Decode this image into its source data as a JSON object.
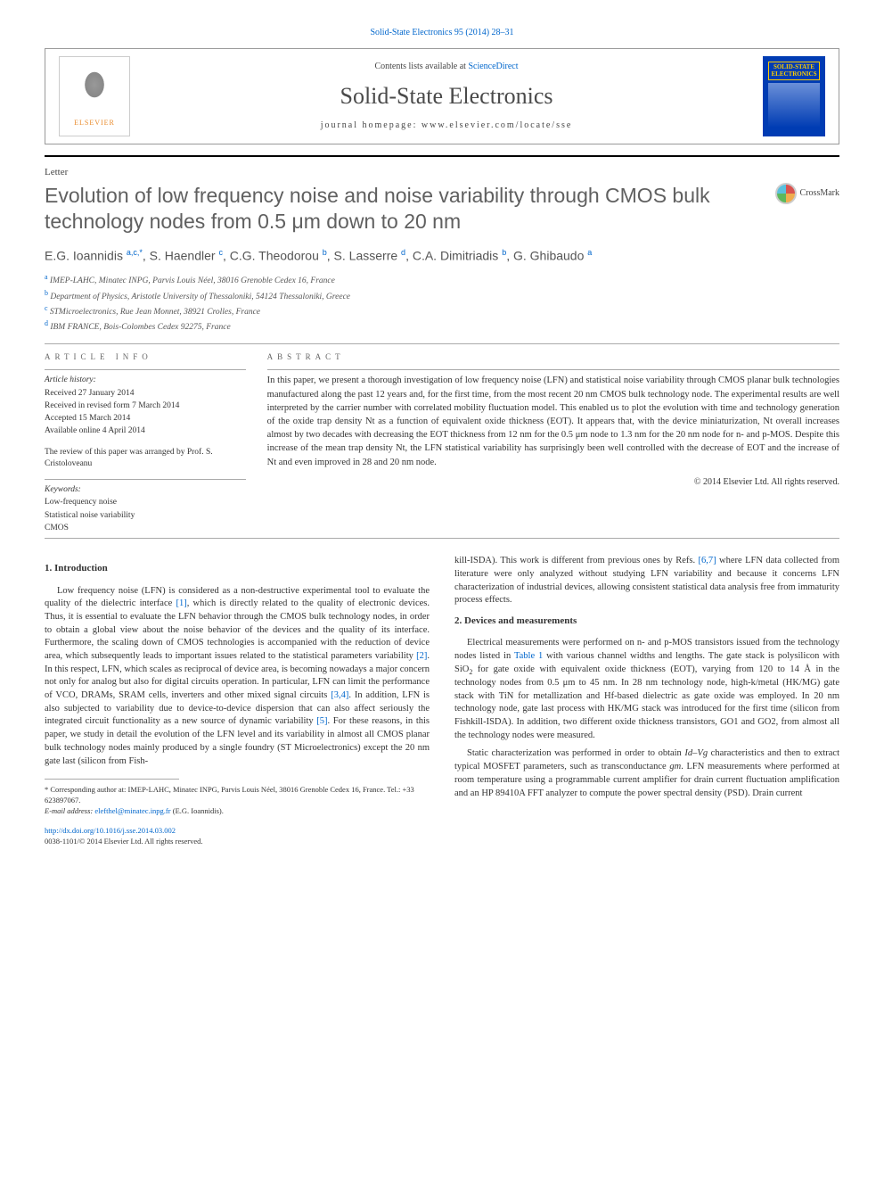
{
  "top_link": "Solid-State Electronics 95 (2014) 28–31",
  "banner": {
    "publisher": "ELSEVIER",
    "contents_prefix": "Contents lists available at ",
    "contents_link": "ScienceDirect",
    "journal_name": "Solid-State Electronics",
    "homepage": "journal homepage: www.elsevier.com/locate/sse",
    "cover_title": "SOLID-STATE ELECTRONICS"
  },
  "letter_label": "Letter",
  "title": "Evolution of low frequency noise and noise variability through CMOS bulk technology nodes from 0.5 μm down to 20 nm",
  "crossmark_label": "CrossMark",
  "authors_html": "E.G. Ioannidis <sup>a,c,*</sup>, S. Haendler <sup>c</sup>, C.G. Theodorou <sup>b</sup>, S. Lasserre <sup>d</sup>, C.A. Dimitriadis <sup>b</sup>, G. Ghibaudo <sup>a</sup>",
  "affiliations": [
    {
      "sup": "a",
      "text": "IMEP-LAHC, Minatec INPG, Parvis Louis Néel, 38016 Grenoble Cedex 16, France"
    },
    {
      "sup": "b",
      "text": "Department of Physics, Aristotle University of Thessaloniki, 54124 Thessaloniki, Greece"
    },
    {
      "sup": "c",
      "text": "STMicroelectronics, Rue Jean Monnet, 38921 Crolles, France"
    },
    {
      "sup": "d",
      "text": "IBM FRANCE, Bois-Colombes Cedex 92275, France"
    }
  ],
  "info_label": "ARTICLE INFO",
  "abstract_label": "ABSTRACT",
  "history": {
    "label": "Article history:",
    "received": "Received 27 January 2014",
    "revised": "Received in revised form 7 March 2014",
    "accepted": "Accepted 15 March 2014",
    "online": "Available online 4 April 2014"
  },
  "review_note": "The review of this paper was arranged by Prof. S. Cristoloveanu",
  "keywords": {
    "label": "Keywords:",
    "items": [
      "Low-frequency noise",
      "Statistical noise variability",
      "CMOS"
    ]
  },
  "abstract": "In this paper, we present a thorough investigation of low frequency noise (LFN) and statistical noise variability through CMOS planar bulk technologies manufactured along the past 12 years and, for the first time, from the most recent 20 nm CMOS bulk technology node. The experimental results are well interpreted by the carrier number with correlated mobility fluctuation model. This enabled us to plot the evolution with time and technology generation of the oxide trap density Nt as a function of equivalent oxide thickness (EOT). It appears that, with the device miniaturization, Nt overall increases almost by two decades with decreasing the EOT thickness from 12 nm for the 0.5 μm node to 1.3 nm for the 20 nm node for n- and p-MOS. Despite this increase of the mean trap density Nt, the LFN statistical variability has surprisingly been well controlled with the decrease of EOT and the increase of Nt and even improved in 28 and 20 nm node.",
  "copyright": "© 2014 Elsevier Ltd. All rights reserved.",
  "sections": {
    "intro_heading": "1. Introduction",
    "intro_p1a": "Low frequency noise (LFN) is considered as a non-destructive experimental tool to evaluate the quality of the dielectric interface ",
    "intro_ref1": "[1]",
    "intro_p1b": ", which is directly related to the quality of electronic devices. Thus, it is essential to evaluate the LFN behavior through the CMOS bulk technology nodes, in order to obtain a global view about the noise behavior of the devices and the quality of its interface. Furthermore, the scaling down of CMOS technologies is accompanied with the reduction of device area, which subsequently leads to important issues related to the statistical parameters variability ",
    "intro_ref2": "[2]",
    "intro_p1c": ". In this respect, LFN, which scales as reciprocal of device area, is becoming nowadays a major concern not only for analog but also for digital circuits operation. In particular, LFN can limit the performance of VCO, DRAMs, SRAM cells, inverters and other mixed signal circuits ",
    "intro_ref34": "[3,4]",
    "intro_p1d": ". In addition, LFN is also subjected to variability due to device-to-device dispersion that can also affect seriously the integrated circuit functionality as a new source of dynamic variability ",
    "intro_ref5": "[5]",
    "intro_p1e": ". For these reasons, in this paper, we study in detail the evolution of the LFN level and its variability in almost all CMOS planar bulk technology nodes mainly produced by a single foundry (ST Microelectronics) except the 20 nm gate last (silicon from Fish-",
    "col2_p1a": "kill-ISDA). This work is different from previous ones by Refs. ",
    "col2_ref67": "[6,7]",
    "col2_p1b": " where LFN data collected from literature were only analyzed without studying LFN variability and because it concerns LFN characterization of industrial devices, allowing consistent statistical data analysis free from immaturity process effects.",
    "devices_heading": "2. Devices and measurements",
    "devices_p1a": "Electrical measurements were performed on n- and p-MOS transistors issued from the technology nodes listed in ",
    "devices_table1": "Table 1",
    "devices_p1b": " with various channel widths and lengths. The gate stack is polysilicon with SiO",
    "devices_sub2": "2",
    "devices_p1c": " for gate oxide with equivalent oxide thickness (EOT), varying from 120 to 14 Å in the technology nodes from 0.5 μm to 45 nm. In 28 nm technology node, high-k/metal (HK/MG) gate stack with TiN for metallization and Hf-based dielectric as gate oxide was employed. In 20 nm technology node, gate last process with HK/MG stack was introduced for the first time (silicon from Fishkill-ISDA). In addition, two different oxide thickness transistors, GO1 and GO2, from almost all the technology nodes were measured.",
    "devices_p2a": "Static characterization was performed in order to obtain ",
    "devices_IdVg": "Id–Vg",
    "devices_p2b": " characteristics and then to extract typical MOSFET parameters, such as transconductance ",
    "devices_gm": "gm",
    "devices_p2c": ". LFN measurements where performed at room temperature using a programmable current amplifier for drain current fluctuation amplification and an HP 89410A FFT analyzer to compute the power spectral density (PSD). Drain current"
  },
  "footnote": {
    "corr": "* Corresponding author at: IMEP-LAHC, Minatec INPG, Parvis Louis Néel, 38016 Grenoble Cedex 16, France. Tel.: +33 623897067.",
    "email_label": "E-mail address: ",
    "email": "elefthel@minatec.inpg.fr",
    "email_who": " (E.G. Ioannidis)."
  },
  "doi": {
    "url": "http://dx.doi.org/10.1016/j.sse.2014.03.002",
    "issn": "0038-1101/© 2014 Elsevier Ltd. All rights reserved."
  },
  "colors": {
    "link": "#0066cc",
    "title_gray": "#606060",
    "banner_blue": "#003cb3",
    "banner_yellow": "#ffcc00",
    "publisher_orange": "#e98b2c"
  }
}
